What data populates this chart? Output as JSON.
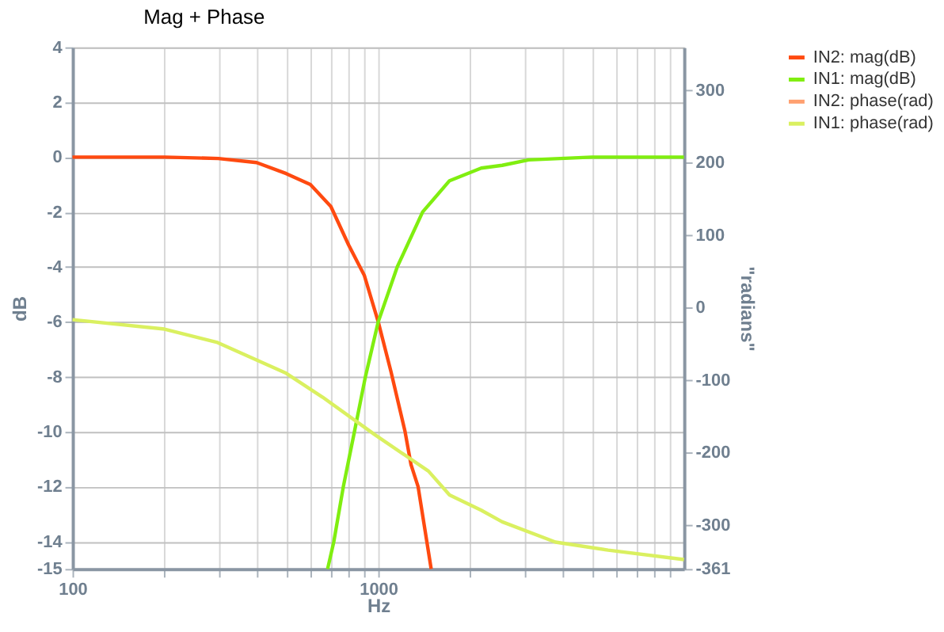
{
  "chart_data": {
    "type": "line",
    "title": "Mag + Phase",
    "xlabel": "Hz",
    "ylabel": "dB",
    "y2label": "\"radians\"",
    "log": "x",
    "grid": true,
    "legend": "right",
    "marker": "none",
    "line_style": "solid",
    "xlim": [
      100,
      10000
    ],
    "xticks": [
      100,
      {
        "value": 200,
        "label": null
      },
      {
        "value": 300,
        "label": null
      },
      {
        "value": 400,
        "label": null
      },
      {
        "value": 500,
        "label": null
      },
      {
        "value": 600,
        "label": null
      },
      {
        "value": 700,
        "label": null
      },
      {
        "value": 800,
        "label": null
      },
      {
        "value": 900,
        "label": null
      },
      1000,
      {
        "value": 2000,
        "label": null
      },
      {
        "value": 3000,
        "label": null
      },
      {
        "value": 4000,
        "label": null
      },
      {
        "value": 5000,
        "label": null
      },
      {
        "value": 6000,
        "label": null
      },
      {
        "value": 7000,
        "label": null
      },
      {
        "value": 8000,
        "label": null
      },
      {
        "value": 9000,
        "label": null
      }
    ],
    "ylim": [
      -15,
      4
    ],
    "yticks": [
      -15,
      -14,
      -12,
      -10,
      -8,
      -6,
      -4,
      -2,
      0,
      2,
      4
    ],
    "y2lim": [
      -361,
      359
    ],
    "y2ticks": [
      -361,
      -300,
      -200,
      -100,
      0,
      100,
      200,
      300
    ],
    "series": [
      {
        "name": "IN2: mag(dB)",
        "color": "#ff4a10",
        "x": [
          100,
          200,
          300,
          400,
          500,
          600,
          700,
          800,
          900,
          1000,
          1100,
          1224,
          1280,
          1350,
          1490
        ],
        "values": [
          0,
          0,
          -0.05,
          -0.2,
          -0.6,
          -1.0,
          -1.8,
          -3.2,
          -4.3,
          -6,
          -7.8,
          -10,
          -11.2,
          -12,
          -15
        ]
      },
      {
        "name": "IN1: mag(dB)",
        "color": "#80ee10",
        "x": [
          683,
          716,
          769,
          836,
          908,
          1000,
          1154,
          1397,
          1711,
          2172,
          2543,
          3105,
          5000,
          10000
        ],
        "values": [
          -15,
          -14,
          -12,
          -10,
          -8,
          -6,
          -4,
          -2,
          -0.86,
          -0.4,
          -0.3,
          -0.1,
          0,
          0
        ]
      },
      {
        "name": "IN2: phase(rad)",
        "color": "#ffa070",
        "axis": "y2"
      },
      {
        "name": "IN1: phase(rad)",
        "color": "#daf060",
        "axis": "y2",
        "x": [
          100,
          200,
          296,
          500,
          658,
          977,
          1460,
          1711,
          2172,
          2543,
          3800,
          5650,
          10000
        ],
        "values": [
          -17,
          -30,
          -48,
          -91,
          -124,
          -176,
          -226,
          -259,
          -280,
          -296,
          -324,
          -335,
          -348
        ]
      }
    ]
  }
}
